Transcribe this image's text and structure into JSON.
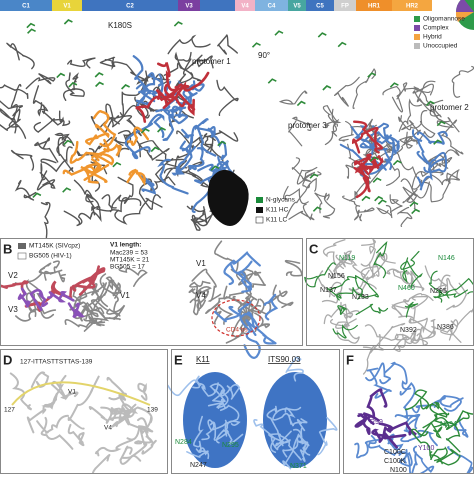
{
  "top_bar": {
    "segments": [
      "C1",
      "V1",
      "C2",
      "V3",
      "V4",
      "C4",
      "V5",
      "C5",
      "FP",
      "HR1",
      "HR2"
    ]
  },
  "glycan_legend": [
    "Oligomannose",
    "Complex",
    "Hybrid",
    "Unoccupied"
  ],
  "panel_a": {
    "mutation": "K180S",
    "protomer_1": "protomer 1",
    "rotation": "90°",
    "protomer_3": "protomer 3",
    "protomer_2": "protomer 2",
    "legend": [
      "N-glycans",
      "K11 HC",
      "K11 LC"
    ]
  },
  "panel_b": {
    "label": "B",
    "legend": [
      "MT145K (SIVcpz)",
      "BG505 (HIV-1)"
    ],
    "v1_title": "V1 length:",
    "v1_lengths": [
      "Mac239 = 53",
      "MT145K = 21",
      "BG505 = 17"
    ],
    "left_labels": [
      "V2",
      "V1",
      "V3"
    ],
    "right_labels": [
      "V1",
      "V4",
      "CD4 bs"
    ]
  },
  "panel_c": {
    "label": "C",
    "glycans": [
      "N119",
      "N156",
      "N146",
      "N137",
      "N133",
      "N460",
      "N295",
      "N392",
      "N386"
    ]
  },
  "panel_d": {
    "label": "D",
    "sequence": "127-ITTASTTSTTAS-139",
    "labels": [
      "127",
      "V1",
      "V4",
      "139"
    ]
  },
  "panel_e": {
    "label": "E",
    "antibodies": [
      "K11",
      "ITS90.03"
    ],
    "glycans": [
      "N284",
      "N295",
      "N247",
      "N371"
    ]
  },
  "panel_f": {
    "label": "F",
    "residues": [
      "R99",
      "N294",
      "Y100",
      "C100C",
      "C100K",
      "N100"
    ]
  }
}
